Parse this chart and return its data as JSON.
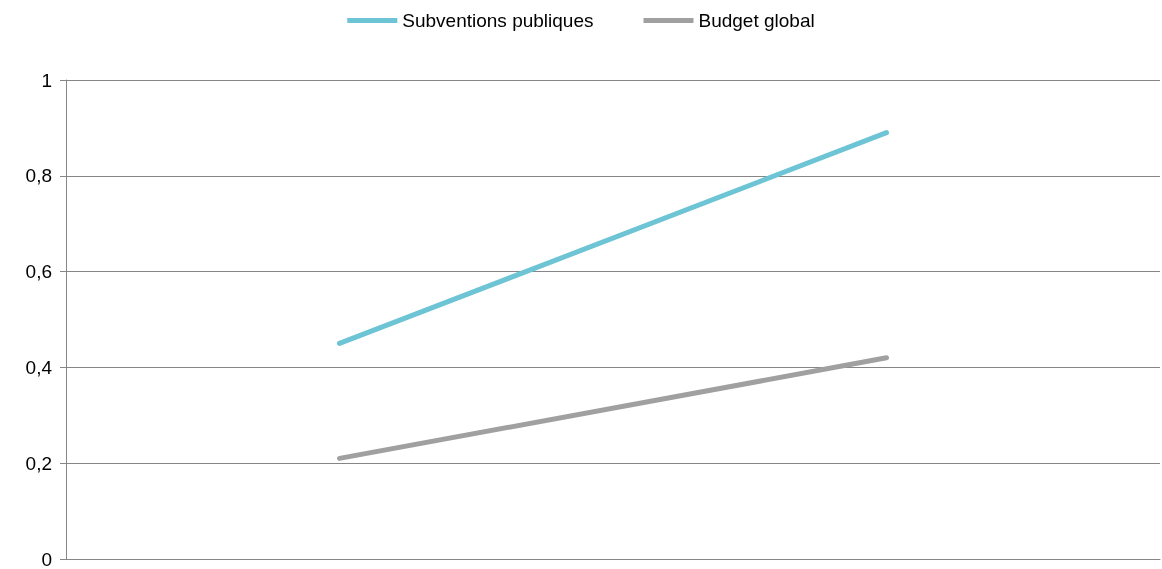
{
  "chart_data": {
    "type": "line",
    "categories": [
      null,
      null
    ],
    "series": [
      {
        "name": "Subventions publiques",
        "color": "#6cc4d4",
        "values": [
          0.45,
          0.89
        ]
      },
      {
        "name": "Budget global",
        "color": "#a0a0a0",
        "values": [
          0.21,
          0.42
        ]
      }
    ],
    "ylim": [
      0,
      1
    ],
    "yticks": [
      0,
      {
        "value": 0.2,
        "label": "0,2"
      },
      {
        "value": 0.4,
        "label": "0,4"
      },
      {
        "value": 0.6,
        "label": "0,6"
      },
      {
        "value": 0.8,
        "label": "0,8"
      },
      1
    ],
    "grid": "y",
    "legend": "top",
    "marker": "none",
    "line_style": "solid"
  }
}
